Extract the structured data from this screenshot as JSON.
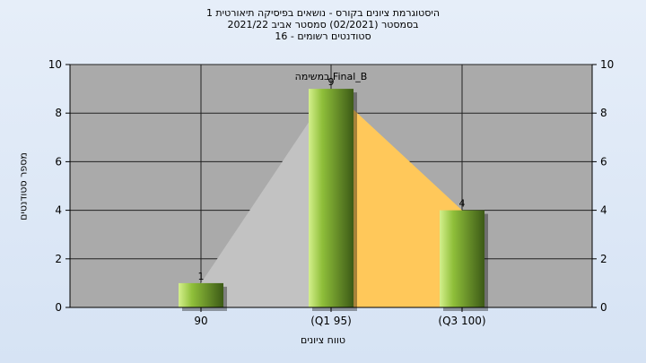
{
  "chart_data": {
    "type": "bar",
    "title_lines": [
      "היסטוגרמת ציונים בקורס - נושאים בפיסיקה תיאורטית 1",
      "בסמסטר  (02/2021)  סמסטר אביב 2021/22",
      "סטודנטים רשומים - 16"
    ],
    "xlabel": "טווח ציונים",
    "ylabel": "מספר סטודנטים",
    "categories": [
      "90",
      "(Q1 95)",
      "(Q3 100)"
    ],
    "values": [
      1,
      9,
      4
    ],
    "data_labels": [
      "1",
      "9",
      "4"
    ],
    "series": [
      {
        "name": "Final_B במשימה",
        "values": [
          1,
          9,
          4
        ]
      }
    ],
    "legend_text": "Final_B במשימה",
    "ylim": [
      0,
      10
    ],
    "yticks": [
      "0",
      "2",
      "4",
      "6",
      "8",
      "10"
    ],
    "grid": true,
    "colors": {
      "plot_bg": "#aaaaaa",
      "bar_light": "#d4f08c",
      "bar_mid": "#8fbf3a",
      "bar_dark": "#3c5a16",
      "gray_area": "#c2c2c2",
      "yellow_area": "#ffc85a"
    }
  }
}
